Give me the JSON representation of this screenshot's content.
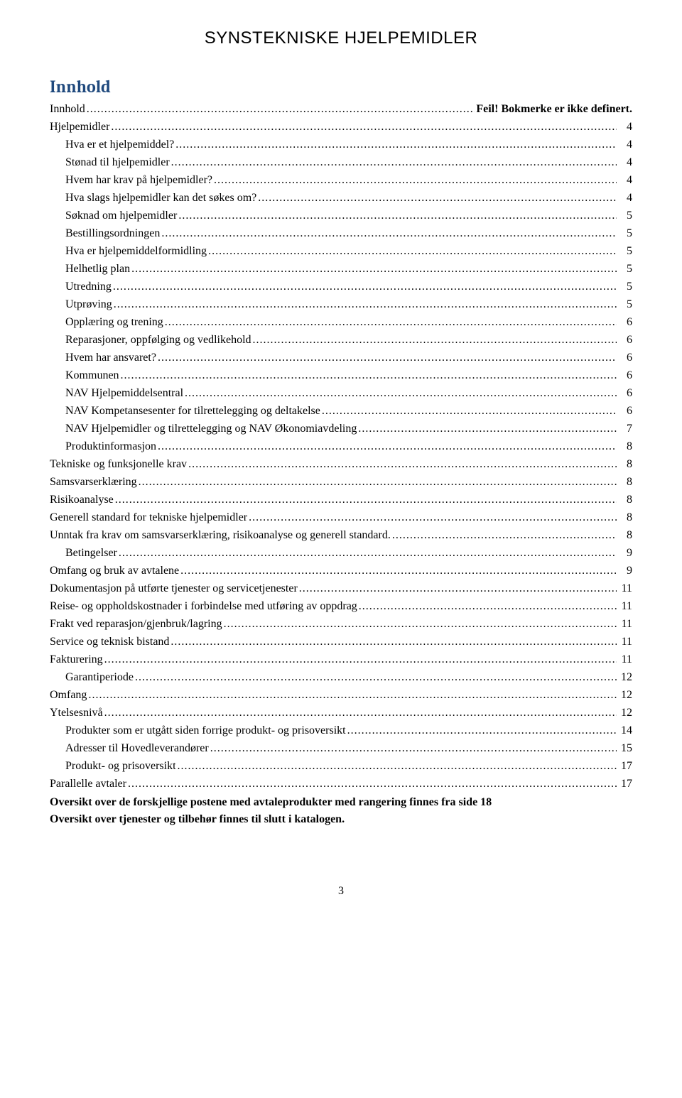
{
  "header": {
    "title": "SYNSTEKNISKE HJELPEMIDLER"
  },
  "toc": {
    "heading": "Innhold",
    "heading_color": "#1f497d",
    "entries": [
      {
        "label": "Innhold",
        "page": "Feil! Bokmerke er ikke definert.",
        "indent": 0,
        "bold_page": true
      },
      {
        "label": "Hjelpemidler",
        "page": "4",
        "indent": 0
      },
      {
        "label": "Hva er et hjelpemiddel?",
        "page": "4",
        "indent": 1
      },
      {
        "label": "Stønad til hjelpemidler",
        "page": "4",
        "indent": 1
      },
      {
        "label": "Hvem har krav på hjelpemidler?",
        "page": "4",
        "indent": 1
      },
      {
        "label": "Hva slags hjelpemidler kan det søkes om?",
        "page": "4",
        "indent": 1
      },
      {
        "label": "Søknad om hjelpemidler",
        "page": "5",
        "indent": 1
      },
      {
        "label": "Bestillingsordningen",
        "page": "5",
        "indent": 1
      },
      {
        "label": "Hva er hjelpemiddelformidling",
        "page": "5",
        "indent": 1
      },
      {
        "label": "Helhetlig plan",
        "page": "5",
        "indent": 1
      },
      {
        "label": "Utredning",
        "page": "5",
        "indent": 1
      },
      {
        "label": "Utprøving",
        "page": "5",
        "indent": 1
      },
      {
        "label": "Opplæring og trening",
        "page": "6",
        "indent": 1
      },
      {
        "label": "Reparasjoner, oppfølging og vedlikehold",
        "page": "6",
        "indent": 1
      },
      {
        "label": "Hvem har ansvaret?",
        "page": "6",
        "indent": 1
      },
      {
        "label": "Kommunen",
        "page": "6",
        "indent": 1
      },
      {
        "label": "NAV Hjelpemiddelsentral",
        "page": "6",
        "indent": 1
      },
      {
        "label": "NAV Kompetansesenter for tilrettelegging og deltakelse",
        "page": "6",
        "indent": 1
      },
      {
        "label": "NAV Hjelpemidler og tilrettelegging og NAV Økonomiavdeling",
        "page": "7",
        "indent": 1
      },
      {
        "label": "Produktinformasjon",
        "page": "8",
        "indent": 1
      },
      {
        "label": "Tekniske og funksjonelle krav",
        "page": "8",
        "indent": 0
      },
      {
        "label": "Samsvarserklæring",
        "page": "8",
        "indent": 0
      },
      {
        "label": "Risikoanalyse",
        "page": "8",
        "indent": 0
      },
      {
        "label": "Generell standard for tekniske hjelpemidler",
        "page": "8",
        "indent": 0
      },
      {
        "label": "Unntak fra krav om samsvarserklæring, risikoanalyse og generell standard.",
        "page": "8",
        "indent": 0
      },
      {
        "label": "Betingelser",
        "page": "9",
        "indent": 1
      },
      {
        "label": "Omfang og bruk av avtalene",
        "page": "9",
        "indent": 0
      },
      {
        "label": "Dokumentasjon på utførte tjenester og servicetjenester",
        "page": "11",
        "indent": 0
      },
      {
        "label": "Reise- og oppholdskostnader i forbindelse med utføring av oppdrag",
        "page": "11",
        "indent": 0
      },
      {
        "label": "Frakt ved reparasjon/gjenbruk/lagring",
        "page": "11",
        "indent": 0
      },
      {
        "label": "Service og teknisk bistand",
        "page": "11",
        "indent": 0
      },
      {
        "label": "Fakturering",
        "page": "11",
        "indent": 0
      },
      {
        "label": "Garantiperiode",
        "page": "12",
        "indent": 1
      },
      {
        "label": "Omfang",
        "page": "12",
        "indent": 0
      },
      {
        "label": "Ytelsesnivå",
        "page": "12",
        "indent": 0
      },
      {
        "label": "Produkter som er utgått siden forrige produkt- og prisoversikt",
        "page": "14",
        "indent": 1
      },
      {
        "label": "Adresser til Hovedleverandører",
        "page": "15",
        "indent": 1
      },
      {
        "label": "Produkt- og prisoversikt",
        "page": "17",
        "indent": 1
      },
      {
        "label": "Parallelle avtaler",
        "page": "17",
        "indent": 0
      }
    ],
    "end_lines": [
      "Oversikt over de forskjellige postene med avtaleprodukter med rangering finnes fra side 18",
      "Oversikt over tjenester og tilbehør finnes til slutt i katalogen."
    ]
  },
  "footer": {
    "page_number": "3"
  }
}
